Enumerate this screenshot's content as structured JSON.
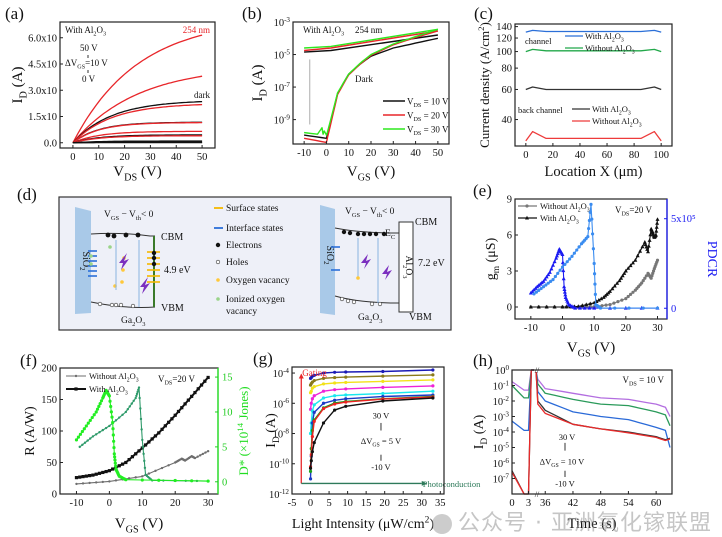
{
  "figure": {
    "watermark": "公众号 · 亚洲氧化镓联盟"
  },
  "chart_data": [
    {
      "panel": "(a)",
      "type": "line",
      "xlabel": "V_DS (V)",
      "ylabel": "I_D (A)",
      "xlim": [
        -5,
        55
      ],
      "ylim": [
        -3e-05,
        0.00069
      ],
      "xticks": [
        0,
        10,
        20,
        30,
        40,
        50
      ],
      "yticks": [
        0,
        0.00015,
        0.0003,
        0.00045,
        0.0006
      ],
      "ytick_labels": [
        "0.0",
        "1.5x10⁻⁴",
        "3.0x10⁻⁴",
        "4.5x10⁻⁴",
        "6.0x10⁻⁴"
      ],
      "annotations": [
        "With Al₂O₃",
        "254 nm",
        "50 V",
        "ΔV_GS=10 V",
        "0 V",
        "dark"
      ],
      "series": [
        {
          "name": "254 nm V_GS=50 V",
          "color": "#e8262a",
          "sat": 0.000615
        },
        {
          "name": "254 nm V_GS=40 V",
          "color": "#e8262a",
          "sat": 0.00038
        },
        {
          "name": "dark V_GS=50 V",
          "color": "#111111",
          "sat": 0.000235
        },
        {
          "name": "254 nm V_GS=30 V",
          "color": "#e8262a",
          "sat": 0.000218
        },
        {
          "name": "dark V_GS=40 V",
          "color": "#111111",
          "sat": 0.000117
        },
        {
          "name": "254 nm V_GS=20 V",
          "color": "#e8262a",
          "sat": 0.000115
        },
        {
          "name": "254 nm V_GS=10 V",
          "color": "#e8262a",
          "sat": 6.5e-05
        },
        {
          "name": "dark V_GS=30 V",
          "color": "#111111",
          "sat": 4.5e-05
        },
        {
          "name": "254 nm V_GS=0 V",
          "color": "#e8262a",
          "sat": 4e-05
        },
        {
          "name": "dark V_GS=20 V",
          "color": "#111111",
          "sat": 1e-05
        },
        {
          "name": "dark V_GS=10 V",
          "color": "#111111",
          "sat": 4e-06
        },
        {
          "name": "dark V_GS=0 V",
          "color": "#111111",
          "sat": 1e-06
        }
      ]
    },
    {
      "panel": "(b)",
      "type": "line",
      "yscale": "log",
      "xlabel": "V_GS (V)",
      "ylabel": "I_D (A)",
      "xlim": [
        -15,
        55
      ],
      "ylim_log10": [
        -10.5,
        -3
      ],
      "xticks": [
        -10,
        0,
        10,
        20,
        30,
        40,
        50
      ],
      "yticks_log10": [
        -9,
        -7,
        -5,
        -3
      ],
      "ytick_labels": [
        "10⁻⁹",
        "10⁻⁷",
        "10⁻⁵",
        "10⁻³"
      ],
      "annotations": [
        "With Al₂O₃",
        "254 nm",
        "Dark"
      ],
      "legend": [
        "V_DS = 10 V",
        "V_DS = 20 V",
        "V_DS = 30 V"
      ],
      "legend_position": "center-right",
      "series": [
        {
          "name": "V_DS = 10 V",
          "color": "#111111",
          "light_x": [
            -10,
            2,
            50
          ],
          "light_log10": [
            -4.85,
            -4.75,
            -3.8
          ],
          "dark_x": [
            -10,
            0,
            0.5,
            5,
            10,
            15,
            20,
            30,
            40,
            50
          ],
          "dark_log10": [
            -9.95,
            -10.15,
            -9.9,
            -7.4,
            -6.2,
            -5.6,
            -5.1,
            -4.6,
            -4.3,
            -4.0
          ]
        },
        {
          "name": "V_DS = 20 V",
          "color": "#e8262a",
          "light_x": [
            -10,
            2,
            50
          ],
          "light_log10": [
            -4.75,
            -4.6,
            -3.55
          ],
          "dark_x": [
            -10,
            0,
            0.5,
            5,
            10,
            15,
            20,
            30,
            40,
            50
          ],
          "dark_log10": [
            -10.15,
            -10.4,
            -10.1,
            -7.45,
            -6.25,
            -5.6,
            -5.05,
            -4.4,
            -3.95,
            -3.55
          ]
        },
        {
          "name": "V_DS = 30 V",
          "color": "#2ee81e",
          "light_x": [
            -10,
            2,
            50
          ],
          "light_log10": [
            -4.6,
            -4.5,
            -3.45
          ],
          "dark_x": [
            -10,
            -4,
            -2,
            -1.5,
            -1,
            0,
            0.5,
            5,
            10,
            15,
            20,
            30,
            40,
            50
          ],
          "dark_log10": [
            -9.8,
            -9.9,
            -9.5,
            -9.9,
            -9.7,
            -9.95,
            -9.75,
            -7.35,
            -6.2,
            -5.55,
            -5.0,
            -4.35,
            -3.9,
            -3.45
          ]
        }
      ]
    },
    {
      "panel": "(c)",
      "type": "line",
      "yscale": "log",
      "xlabel": "Location X (μm)",
      "ylabel": "Current density (A/cm²)",
      "xlim": [
        -8,
        108
      ],
      "xticks": [
        0,
        20,
        40,
        60,
        80,
        100
      ],
      "yticks": [
        40,
        60,
        80,
        100,
        120,
        140
      ],
      "ylim": [
        28,
        145
      ],
      "annotations": [
        "channel",
        "back channel"
      ],
      "legend_groups": [
        {
          "position": "top",
          "entries": [
            "With Al₂O₃",
            "Without Al₂O₃"
          ]
        },
        {
          "position": "center",
          "entries": [
            "With Al₂O₃",
            "Without Al₂O₃"
          ]
        }
      ],
      "series": [
        {
          "name": "channel With Al₂O₃",
          "color": "#2b6fd8",
          "x": [
            0,
            5,
            15,
            85,
            95,
            100
          ],
          "y": [
            130,
            133,
            131,
            131,
            133,
            130
          ]
        },
        {
          "name": "channel Without Al₂O₃",
          "color": "#22a84a",
          "x": [
            0,
            5,
            15,
            85,
            95,
            100
          ],
          "y": [
            100,
            103,
            101,
            101,
            103,
            100
          ]
        },
        {
          "name": "back channel With Al₂O₃",
          "color": "#333333",
          "x": [
            0,
            5,
            15,
            85,
            95,
            100
          ],
          "y": [
            60,
            62,
            60,
            60,
            62,
            60
          ]
        },
        {
          "name": "back channel Without Al₂O₃",
          "color": "#ee3b3b",
          "x": [
            0,
            5,
            15,
            85,
            95,
            100
          ],
          "y": [
            30,
            34,
            31,
            31,
            34,
            30
          ]
        }
      ]
    },
    {
      "panel": "(e)",
      "type": "line",
      "xlabel": "V_GS (V)",
      "ylabel": "g_m (μS)",
      "ylabel_right": "PDCR",
      "xlim": [
        -15,
        33
      ],
      "ylim": [
        -1,
        9
      ],
      "xticks": [
        -10,
        0,
        10,
        20,
        30
      ],
      "yticks": [
        0,
        3,
        6,
        9
      ],
      "yticks_right_labels": [
        "0",
        "5x10⁵"
      ],
      "ylim_right": [
        -60000.0,
        610000.0
      ],
      "annotations": [
        "V_DS=20 V"
      ],
      "legend": [
        "Without Al₂O₃",
        "With Al₂O₃"
      ],
      "legend_position": "top-left",
      "series": [
        {
          "name": "Without Al₂O₃",
          "color": "#777777",
          "marker": "circle",
          "axis": "left",
          "x": [
            -10,
            0,
            5,
            10,
            15,
            20,
            23,
            25,
            27,
            28,
            29,
            30
          ],
          "y": [
            0,
            0,
            0,
            0.02,
            0.2,
            0.7,
            1.4,
            2.0,
            2.8,
            2.4,
            3.2,
            3.9
          ]
        },
        {
          "name": "With Al₂O₃",
          "color": "#111111",
          "marker": "triangle",
          "axis": "left",
          "x": [
            -10,
            0,
            5,
            10,
            13,
            15,
            18,
            20,
            23,
            26,
            27,
            28,
            28.5,
            29,
            29.5,
            30
          ],
          "y": [
            0,
            0,
            0.05,
            0.35,
            0.8,
            1.3,
            2.2,
            3.0,
            3.9,
            5.4,
            4.6,
            6.5,
            6.2,
            5.8,
            6.0,
            7.3
          ]
        },
        {
          "name": "PDCR Without Al₂O₃",
          "color": "#1b1bf2",
          "marker": "triangle",
          "axis": "right",
          "x": [
            -10,
            -8,
            -6,
            -4,
            -2,
            -1,
            0,
            0.5,
            1,
            2,
            4,
            10,
            30
          ],
          "y": [
            85000.0,
            120000.0,
            150000.0,
            200000.0,
            280000.0,
            330000.0,
            300000.0,
            120000.0,
            60000.0,
            20000.0,
            1000.0,
            1000.0,
            1000.0
          ]
        },
        {
          "name": "PDCR With Al₂O₃",
          "color": "#3a8cf0",
          "marker": "circle",
          "axis": "right",
          "x": [
            -9,
            -6,
            -3,
            0,
            3,
            6,
            8,
            9,
            10,
            10.5,
            12,
            30
          ],
          "y": [
            80000.0,
            120000.0,
            160000.0,
            230000.0,
            290000.0,
            360000.0,
            400000.0,
            580000.0,
            250000.0,
            20000.0,
            1000.0,
            1000.0
          ]
        }
      ]
    },
    {
      "panel": "(f)",
      "type": "line",
      "xlabel": "V_GS (V)",
      "ylabel": "R (A/W)",
      "ylabel_right": "D* (×10¹⁴ Jones)",
      "xlim": [
        -15,
        33
      ],
      "ylim": [
        0,
        200
      ],
      "xticks": [
        -10,
        0,
        10,
        20,
        30
      ],
      "yticks": [
        0,
        50,
        100,
        150,
        200
      ],
      "yticks_right": [
        0,
        5,
        10,
        15
      ],
      "ylim_right": [
        -1.75,
        16.3
      ],
      "annotations": [
        "V_DS=20 V"
      ],
      "legend": [
        "Without Al₂O₃",
        "With Al₂O₃"
      ],
      "legend_position": "top-left",
      "series": [
        {
          "name": "Without Al₂O₃",
          "color": "#6e6e6e",
          "marker": "star",
          "axis": "left",
          "x": [
            -10,
            0,
            10,
            20,
            22,
            23,
            25,
            26,
            30
          ],
          "y": [
            16,
            20,
            28,
            50,
            56,
            53,
            60,
            57,
            68
          ]
        },
        {
          "name": "With Al₂O₃",
          "color": "#111111",
          "marker": "square",
          "axis": "left",
          "x": [
            -10,
            -5,
            0,
            5,
            10,
            15,
            20,
            25,
            30
          ],
          "y": [
            26,
            30,
            37,
            50,
            73,
            97,
            125,
            155,
            185
          ]
        },
        {
          "name": "D* Without Al₂O₃",
          "color": "#2e9a6a",
          "marker": "star",
          "axis": "right",
          "x": [
            -9,
            -5,
            0,
            5,
            8,
            9,
            10,
            11,
            13,
            30
          ],
          "y": [
            5,
            6.5,
            8,
            10,
            12,
            13.5,
            6,
            1.0,
            0.2,
            0.1
          ]
        },
        {
          "name": "D* With Al₂O₃",
          "color": "#22ee22",
          "marker": "circle",
          "axis": "right",
          "x": [
            -10,
            -7,
            -4,
            -2,
            -1,
            0,
            1,
            1.5,
            2,
            3,
            5,
            30
          ],
          "y": [
            6,
            8,
            10,
            12,
            13.1,
            12.3,
            8.5,
            4.0,
            1.8,
            0.8,
            0.3,
            0.1
          ]
        }
      ]
    },
    {
      "panel": "(g)",
      "type": "line",
      "yscale": "log",
      "xlabel": "Light Intensity (μW/cm²)",
      "ylabel": "I_D (A)",
      "xlim": [
        -5,
        36
      ],
      "ylim_log10": [
        -12,
        -3.6
      ],
      "xticks": [
        -5,
        0,
        5,
        10,
        15,
        20,
        25,
        30,
        35
      ],
      "yticks_log10": [
        -12,
        -10,
        -8,
        -6,
        -4
      ],
      "ytick_labels": [
        "10⁻¹²",
        "10⁻¹⁰",
        "10⁻⁸",
        "10⁻⁶",
        "10⁻⁴"
      ],
      "annotations": [
        "Gating",
        "Photoconduction",
        "30 V",
        "ΔV_GS = 5 V",
        "-10 V"
      ],
      "x": [
        0,
        0.2,
        0.5,
        1,
        3.5,
        6.5,
        9.5,
        19.5,
        33
      ],
      "series": [
        {
          "name": "V_GS=30 V",
          "color": "#1b1bb5",
          "log10": [
            -4.35,
            -4.3,
            -4.2,
            -4.15,
            -4.0,
            -3.95,
            -3.93,
            -3.9,
            -3.8
          ]
        },
        {
          "name": "V_GS=25 V",
          "color": "#8a7a1a",
          "log10": [
            -4.8,
            -4.7,
            -4.6,
            -4.5,
            -4.35,
            -4.3,
            -4.27,
            -4.2,
            -4.12
          ]
        },
        {
          "name": "V_GS=20 V",
          "color": "#f2e21a",
          "log10": [
            -5.3,
            -5.2,
            -5.0,
            -4.9,
            -4.72,
            -4.66,
            -4.62,
            -4.55,
            -4.45
          ]
        },
        {
          "name": "V_GS=15 V",
          "color": "#ee22d8",
          "log10": [
            -6.4,
            -6.0,
            -5.7,
            -5.5,
            -5.2,
            -5.1,
            -5.05,
            -4.95,
            -4.85
          ]
        },
        {
          "name": "V_GS=10 V",
          "color": "#1ae8ee",
          "log10": [
            -8.0,
            -7.3,
            -6.5,
            -6.1,
            -5.65,
            -5.5,
            -5.45,
            -5.35,
            -5.2
          ]
        },
        {
          "name": "V_GS=5 V",
          "color": "#1b3bc5",
          "log10": [
            -11.0,
            -9.5,
            -7.3,
            -6.6,
            -6.0,
            -5.8,
            -5.7,
            -5.55,
            -5.45
          ]
        },
        {
          "name": "V_GS=0 V",
          "color": "#1aa01a",
          "log10": [
            -10.5,
            -9.0,
            -7.8,
            -7.1,
            -6.3,
            -5.98,
            -5.88,
            -5.7,
            -5.55
          ]
        },
        {
          "name": "V_GS=-5 V",
          "color": "#ee2222",
          "log10": [
            -10.2,
            -9.4,
            -8.2,
            -7.2,
            -6.35,
            -6.05,
            -5.92,
            -5.72,
            -5.58
          ]
        },
        {
          "name": "V_GS=-10 V",
          "color": "#111111",
          "log10": [
            -10.3,
            -9.8,
            -9.2,
            -8.6,
            -7.3,
            -6.45,
            -6.2,
            -5.85,
            -5.65
          ]
        }
      ]
    },
    {
      "panel": "(h)",
      "type": "line",
      "yscale": "log",
      "xlabel": "Time (s)",
      "ylabel": "I_D (A)",
      "x_break": [
        4,
        34
      ],
      "xticks": [
        0,
        3,
        36,
        42,
        48,
        54,
        60
      ],
      "ylim_log10": [
        -8,
        0
      ],
      "yticks_log10": [
        0,
        -1,
        -2,
        -3,
        -4,
        -5,
        -6,
        -7
      ],
      "ytick_labels": [
        "10⁰",
        "10⁻¹",
        "10⁻²",
        "10⁻³",
        "10⁻⁴",
        "10⁻⁵",
        "10⁻⁶",
        "10⁻⁷"
      ],
      "annotations": [
        "V_DS = 10 V",
        "30 V",
        "ΔV_GS = 10 V",
        "-10 V"
      ],
      "series": [
        {
          "name": "V_GS=30 V",
          "color": "#b36ee0",
          "pre": [
            -0.75,
            -1.3
          ],
          "post": [
            -1.2,
            -1.5,
            -1.9,
            -2.2,
            -3.0
          ]
        },
        {
          "name": "V_GS=20 V",
          "color": "#2a9a5a",
          "pre": [
            -1.0,
            -1.8
          ],
          "post": [
            -1.5,
            -1.9,
            -2.3,
            -2.7,
            -3.6
          ]
        },
        {
          "name": "V_GS=10 V",
          "color": "#2a6ad8",
          "pre": [
            -3.3,
            -3.9
          ],
          "post": [
            -2.0,
            -2.7,
            -3.2,
            -3.7,
            -5.0
          ]
        },
        {
          "name": "V_GS=0 V",
          "color": "#333333",
          "pre": [
            -6.5,
            -8.0
          ],
          "post": [
            -2.6,
            -3.5,
            -4.0,
            -4.3,
            -4.4
          ]
        },
        {
          "name": "V_GS=-10 V",
          "color": "#e82a2a",
          "pre": [
            -6.6,
            -8.0
          ],
          "post": [
            -2.8,
            -3.5,
            -4.05,
            -4.35,
            -4.45
          ]
        }
      ]
    }
  ],
  "diagram": {
    "panel": "(d)",
    "left": {
      "condition": "V_GS − V_th < 0",
      "oxide": "SiO₂",
      "semiconductor": "Ga₂O₃",
      "cbm": "CBM",
      "vbm": "VBM",
      "gap": "4.9 eV"
    },
    "legend": [
      "Surface states",
      "Interface states",
      "Electrons",
      "Holes",
      "Oxygen vacancy",
      "Ionized oxygen vacancy"
    ],
    "right": {
      "condition": "V_GS − V_th < 0",
      "oxide": "SiO₂",
      "semiconductor": "Ga₂O₃",
      "passivation": "Al₂O₃",
      "cbm": "CBM",
      "ec": "E_C",
      "vbm": "VBM",
      "gap": "7.2 eV"
    }
  }
}
